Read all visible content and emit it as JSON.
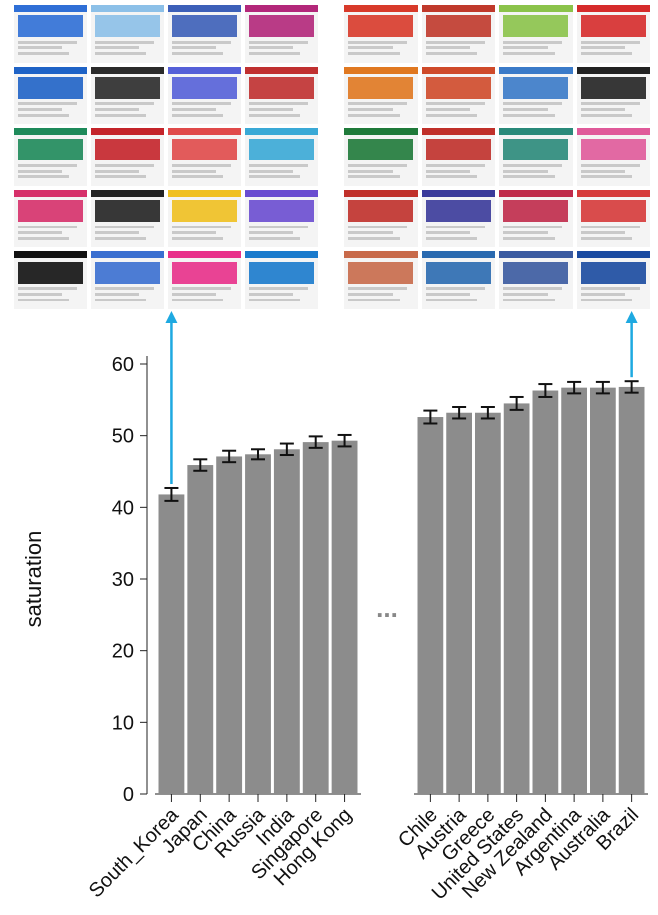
{
  "thumbnails": {
    "left": [
      "#2f6fd6",
      "#8cc0e8",
      "#3c5fb8",
      "#b3277a",
      "#1f63c6",
      "#2a2a2a",
      "#5560d8",
      "#c03030",
      "#1e8a5a",
      "#c4242a",
      "#e04a4a",
      "#3aa9d6",
      "#d6306a",
      "#222222",
      "#f0c020",
      "#6a4cd0",
      "#111111",
      "#3a6fd0",
      "#e8308a",
      "#1a7acc"
    ],
    "right": [
      "#d83a2a",
      "#c0392b",
      "#8bc34a",
      "#d62b2b",
      "#e07820",
      "#cf4a2a",
      "#3a7ac8",
      "#222222",
      "#1f7a3a",
      "#c0302a",
      "#2a8a7a",
      "#e05a9a",
      "#c0302a",
      "#3a3a9a",
      "#c02a4a",
      "#d63a3a",
      "#c86a4a",
      "#2a6ab0",
      "#3a5aa0",
      "#1a4aa0"
    ]
  },
  "chart_data": {
    "type": "bar",
    "ylabel": "saturation",
    "ylim": [
      0,
      60
    ],
    "yticks": [
      0,
      10,
      20,
      30,
      40,
      50,
      60
    ],
    "groups": [
      {
        "categories": [
          "South_Korea",
          "Japan",
          "China",
          "Russia",
          "India",
          "Singapore",
          "Hong Kong"
        ],
        "values": [
          41.8,
          45.9,
          47.1,
          47.4,
          48.1,
          49.1,
          49.3
        ],
        "errors": [
          0.9,
          0.8,
          0.8,
          0.7,
          0.8,
          0.8,
          0.8
        ]
      },
      {
        "categories": [
          "Chile",
          "Austria",
          "Greece",
          "United States",
          "New Zealand",
          "Argentina",
          "Australia",
          "Brazil"
        ],
        "values": [
          52.6,
          53.2,
          53.2,
          54.5,
          56.3,
          56.7,
          56.7,
          56.8
        ],
        "errors": [
          0.9,
          0.8,
          0.8,
          0.9,
          0.9,
          0.8,
          0.8,
          0.8
        ]
      }
    ],
    "gap_marker": "...",
    "bar_color": "#8c8c8c",
    "arrow_color": "#1ea9e1"
  }
}
